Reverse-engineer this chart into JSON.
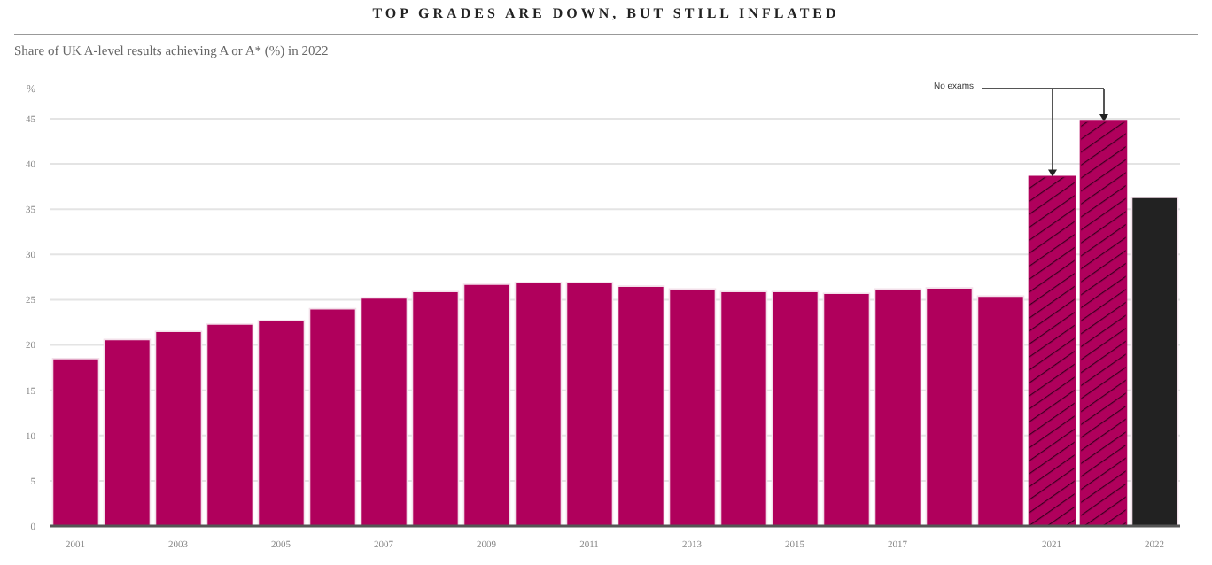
{
  "chart_data": {
    "type": "bar",
    "title": "TOP GRADES ARE DOWN, BUT STILL INFLATED",
    "subtitle": "Share of UK A-level results achieving A or A* (%) in 2022",
    "ylabel": "%",
    "categories": [
      "2001",
      null,
      "2003",
      null,
      "2005",
      null,
      "2007",
      null,
      "2009",
      null,
      "2011",
      null,
      "2013",
      null,
      "2015",
      null,
      "2017",
      null,
      null,
      "2021",
      null,
      "2022"
    ],
    "values": [
      18.5,
      20.6,
      21.5,
      22.3,
      22.7,
      24.0,
      25.2,
      25.9,
      26.7,
      26.9,
      26.9,
      26.5,
      26.2,
      25.9,
      25.9,
      25.7,
      26.2,
      26.3,
      25.4,
      38.6,
      44.7,
      36.3
    ],
    "colors": [
      "#b0005c",
      "#b0005c",
      "#b0005c",
      "#b0005c",
      "#b0005c",
      "#b0005c",
      "#b0005c",
      "#b0005c",
      "#b0005c",
      "#b0005c",
      "#b0005c",
      "#b0005c",
      "#b0005c",
      "#b0005c",
      "#b0005c",
      "#b0005c",
      "#b0005c",
      "#b0005c",
      "#b0005c",
      "#b0005c",
      "#b0005c",
      "#222222"
    ],
    "ylim": [
      0,
      45
    ],
    "yticks": [
      0,
      5,
      10,
      15,
      20,
      25,
      30,
      35,
      40,
      45
    ],
    "grid": "y",
    "annotations": [
      "No exams"
    ]
  }
}
